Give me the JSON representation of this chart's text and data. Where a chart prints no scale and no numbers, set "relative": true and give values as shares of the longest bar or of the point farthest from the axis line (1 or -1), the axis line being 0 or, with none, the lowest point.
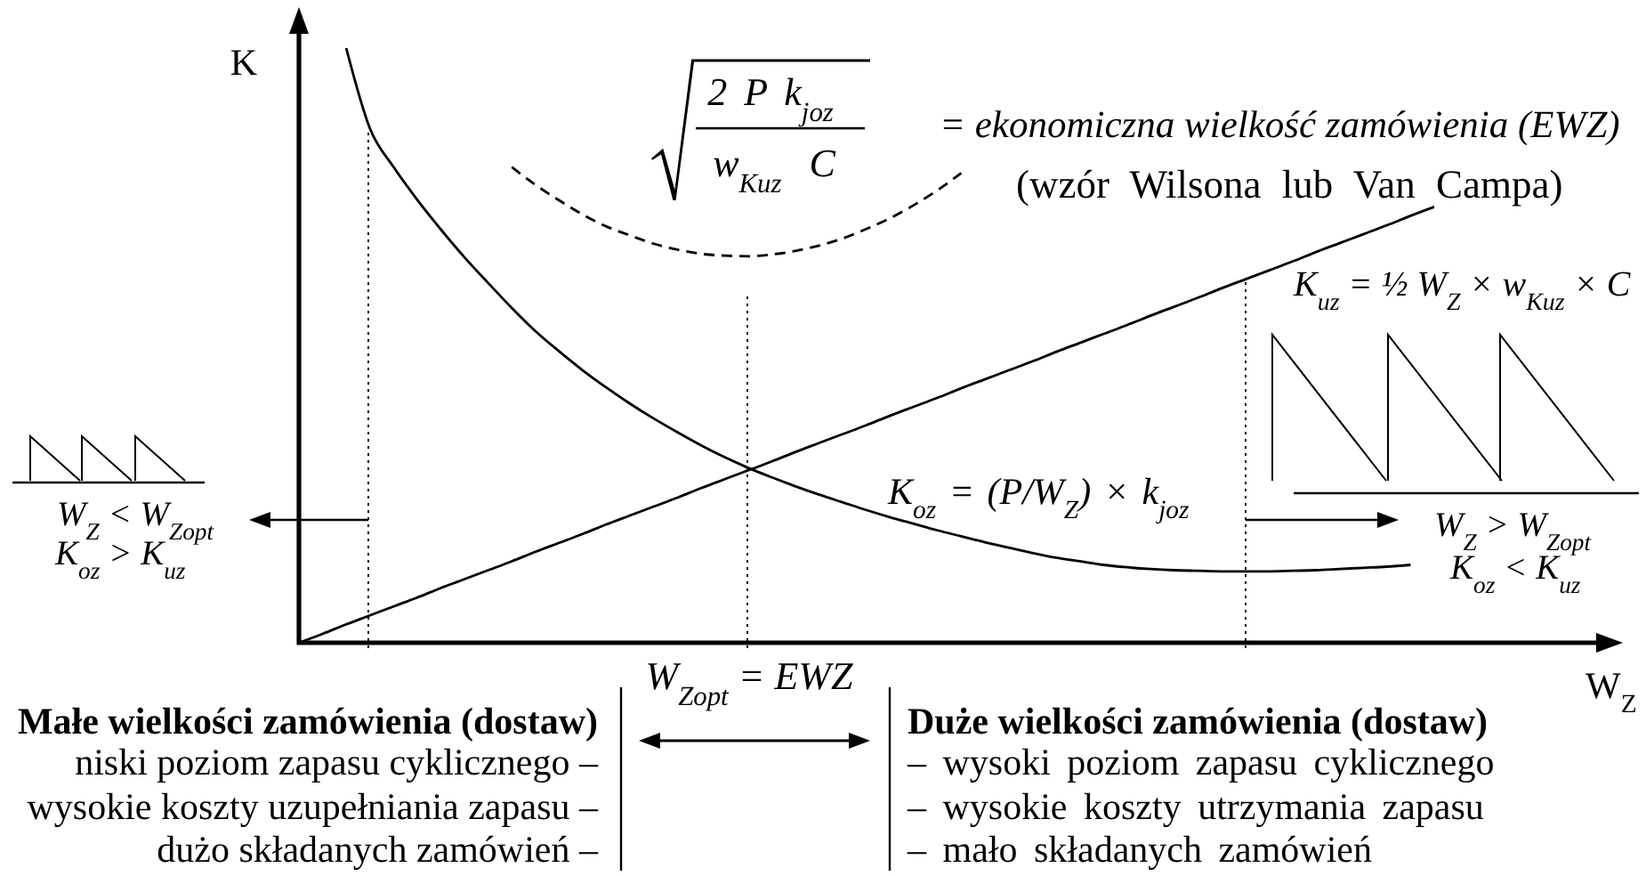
{
  "chart_data": {
    "type": "line",
    "relative": true,
    "ylabel": "K",
    "xlabel": "W$_{Z}$",
    "categories": [
      null,
      null,
      null,
      null,
      null,
      null,
      null,
      null,
      null,
      null,
      null,
      null,
      null,
      null,
      null,
      null,
      null,
      null,
      null,
      null,
      null,
      null,
      null,
      null,
      null,
      null,
      null,
      null,
      null,
      null,
      null,
      null,
      null,
      null,
      null,
      null,
      null,
      null,
      null,
      null,
      null,
      null,
      null,
      null,
      null,
      null,
      null,
      null,
      null
    ],
    "series": [
      {
        "name": "K$_{oz}$ = (P/W$_{Z}$) × k$_{joz}$",
        "color": "#000000",
        "values": [
          null,
          null,
          1,
          0.865,
          0.8,
          0.745,
          0.695,
          0.648,
          0.605,
          0.563,
          0.524,
          0.49,
          0.458,
          0.429,
          0.402,
          0.377,
          0.354,
          0.332,
          0.312,
          0.294,
          0.278,
          0.263,
          0.249,
          0.236,
          0.223,
          0.211,
          0.2,
          0.189,
          0.179,
          0.169,
          0.16,
          0.151,
          0.143,
          0.137,
          0.131,
          0.127,
          0.124,
          0.122,
          0.121,
          0.12,
          0.12,
          0.12,
          0.121,
          0.122,
          0.124,
          0.126,
          0.128,
          0.131,
          null
        ]
      },
      {
        "name": "K$_{uz}$ = ½ W$_{Z}$ × w$_{Kuz}$ × C",
        "color": "#000000",
        "values": [
          0,
          0.015,
          0.031,
          0.046,
          0.061,
          0.076,
          0.092,
          0.107,
          0.122,
          0.137,
          0.153,
          0.168,
          0.183,
          0.199,
          0.214,
          0.229,
          0.244,
          0.26,
          0.275,
          0.29,
          0.305,
          0.321,
          0.336,
          0.351,
          0.366,
          0.382,
          0.397,
          0.412,
          0.428,
          0.443,
          0.458,
          0.473,
          0.489,
          0.504,
          0.519,
          0.534,
          0.55,
          0.565,
          0.58,
          0.596,
          0.611,
          0.626,
          0.641,
          0.657,
          0.672,
          0.687,
          0.702,
          0.718,
          0.733
        ]
      },
      {
        "color": "#000000",
        "line_style": "dashed",
        "values": [
          null,
          null,
          null,
          null,
          null,
          null,
          null,
          null,
          null,
          0.8,
          0.77,
          0.744,
          0.72,
          0.7,
          0.685,
          0.671,
          0.661,
          0.654,
          0.651,
          0.65,
          0.653,
          0.659,
          0.668,
          0.68,
          0.696,
          0.714,
          0.736,
          0.761,
          0.79,
          null,
          null,
          null,
          null,
          null,
          null,
          null,
          null,
          null,
          null,
          null,
          null,
          null,
          null,
          null,
          null,
          null,
          null,
          null,
          null
        ]
      }
    ],
    "annotations": [
      "2 P k$_{joz}$",
      "w$_{Kuz}$ C",
      "= ekonomiczna wielkość zamówienia (EWZ)",
      "(wzór Wilsona lub Van Campa)",
      "W$_{Z}$ < W$_{Zopt}$",
      "K$_{oz}$ > K$_{uz}$",
      "W$_{Z}$ > W$_{Zopt}$",
      "K$_{oz}$ < K$_{uz}$",
      "W$_{Zopt}$ = EWZ",
      "Małe wielkości zamówienia (dostaw)",
      "niski poziom zapasu cyklicznego –",
      "wysokie koszty uzupełniania zapasu –",
      "dużo składanych zamówień –",
      "Duże wielkości zamówienia (dostaw)",
      "– wysoki poziom zapasu cyklicznego",
      "– wysokie koszty utrzymania zapasu",
      "– mało składanych zamówień"
    ]
  }
}
